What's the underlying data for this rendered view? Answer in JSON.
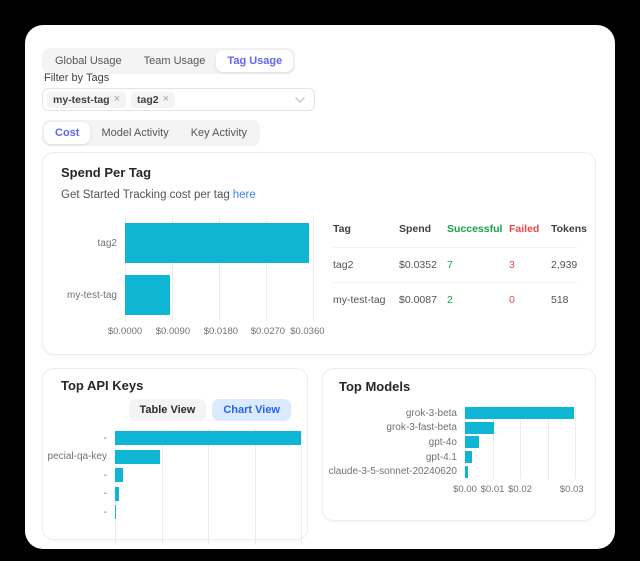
{
  "usage_tabs": {
    "items": [
      {
        "label": "Global Usage",
        "active": false
      },
      {
        "label": "Team Usage",
        "active": false
      },
      {
        "label": "Tag Usage",
        "active": true
      }
    ]
  },
  "filter": {
    "label": "Filter by Tags",
    "tags": [
      {
        "label": "my-test-tag"
      },
      {
        "label": "tag2"
      }
    ]
  },
  "view_tabs": {
    "items": [
      {
        "label": "Cost",
        "active": true
      },
      {
        "label": "Model Activity",
        "active": false
      },
      {
        "label": "Key Activity",
        "active": false
      }
    ]
  },
  "spend_card": {
    "title": "Spend Per Tag",
    "subtitle_text": "Get Started Tracking cost per tag",
    "subtitle_link": "here",
    "table": {
      "headers": [
        "Tag",
        "Spend",
        "Successful",
        "Failed",
        "Tokens"
      ],
      "rows": [
        {
          "tag": "tag2",
          "spend": "$0.0352",
          "successful": "7",
          "failed": "3",
          "tokens": "2,939"
        },
        {
          "tag": "my-test-tag",
          "spend": "$0.0087",
          "successful": "2",
          "failed": "0",
          "tokens": "518"
        }
      ]
    }
  },
  "top_api_keys_card": {
    "title": "Top API Keys",
    "table_view_label": "Table View",
    "chart_view_label": "Chart View"
  },
  "top_models_card": {
    "title": "Top Models"
  },
  "colors": {
    "bar": "#0eb6d4",
    "accent": "#6366f1",
    "link": "#3b82f6",
    "success": "#16a34a",
    "failed": "#e5484d",
    "chart_view_bg": "#dbeafe",
    "chart_view_text": "#2563eb"
  },
  "chart_data": [
    {
      "id": "spend-per-tag",
      "type": "bar",
      "orientation": "horizontal",
      "title": "Spend Per Tag",
      "categories": [
        "tag2",
        "my-test-tag"
      ],
      "values": [
        0.0352,
        0.0087
      ],
      "xlabel": "",
      "ylabel": "",
      "xlim": [
        0,
        0.036
      ],
      "grid": true,
      "gridline_pos": [
        0,
        25,
        50,
        75,
        100
      ],
      "ticks": [
        {
          "label": "$0.0000",
          "pos": 0
        },
        {
          "label": "$0.0090",
          "pos": 25.5
        },
        {
          "label": "$0.0180",
          "pos": 51
        },
        {
          "label": "$0.0270",
          "pos": 76
        },
        {
          "label": "$0.0360",
          "pos": 97
        }
      ]
    },
    {
      "id": "top-api-keys",
      "type": "bar",
      "orientation": "horizontal",
      "title": "Top API Keys",
      "categories": [
        "-",
        "pecial-qa-key",
        "-",
        "-",
        "-"
      ],
      "values": [
        0.0352,
        0.0086,
        0.0015,
        0.0008,
        0.0001
      ],
      "xlabel": "",
      "ylabel": "",
      "xlim": [
        0,
        0.0352
      ],
      "grid": true,
      "gridline_pos": [
        0,
        25,
        50,
        75,
        100
      ],
      "ticks": []
    },
    {
      "id": "top-models",
      "type": "bar",
      "orientation": "horizontal",
      "title": "Top Models",
      "categories": [
        "grok-3-beta",
        "grok-3-fast-beta",
        "gpt-4o",
        "gpt-4.1",
        "claude-3-5-sonnet-20240620"
      ],
      "values": [
        0.0297,
        0.008,
        0.0037,
        0.0018,
        0.0008
      ],
      "xlabel": "",
      "ylabel": "",
      "xlim": [
        0,
        0.03
      ],
      "grid": true,
      "gridline_pos": [
        0,
        25,
        50,
        75,
        100
      ],
      "ticks": [
        {
          "label": "$0.00",
          "pos": 0
        },
        {
          "label": "$0.01",
          "pos": 25
        },
        {
          "label": "$0.02",
          "pos": 50
        },
        {
          "label": "$0.03",
          "pos": 97
        }
      ]
    }
  ]
}
